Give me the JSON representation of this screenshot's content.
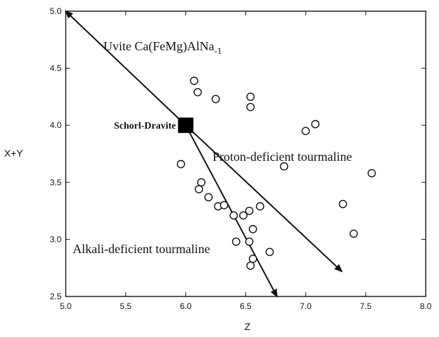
{
  "chart_data": {
    "type": "scatter",
    "title": "",
    "xlabel": "Z",
    "ylabel": "X+Y",
    "xlim": [
      5.0,
      8.0
    ],
    "ylim": [
      2.5,
      5.0
    ],
    "xticks": [
      "5.0",
      "5.5",
      "6.0",
      "6.5",
      "7.0",
      "7.5",
      "8.0"
    ],
    "yticks": [
      "2.5",
      "3.0",
      "3.5",
      "4.0",
      "4.5",
      "5.0"
    ],
    "grid": false,
    "points": [
      {
        "x": 6.07,
        "y": 4.39
      },
      {
        "x": 6.1,
        "y": 4.29
      },
      {
        "x": 6.25,
        "y": 4.23
      },
      {
        "x": 6.54,
        "y": 4.25
      },
      {
        "x": 6.54,
        "y": 4.16
      },
      {
        "x": 7.0,
        "y": 3.95
      },
      {
        "x": 7.08,
        "y": 4.01
      },
      {
        "x": 5.96,
        "y": 3.66
      },
      {
        "x": 6.82,
        "y": 3.64
      },
      {
        "x": 7.55,
        "y": 3.58
      },
      {
        "x": 6.13,
        "y": 3.5
      },
      {
        "x": 6.11,
        "y": 3.44
      },
      {
        "x": 6.19,
        "y": 3.37
      },
      {
        "x": 6.27,
        "y": 3.29
      },
      {
        "x": 6.32,
        "y": 3.3
      },
      {
        "x": 6.4,
        "y": 3.21
      },
      {
        "x": 6.48,
        "y": 3.21
      },
      {
        "x": 6.53,
        "y": 3.25
      },
      {
        "x": 6.62,
        "y": 3.29
      },
      {
        "x": 7.31,
        "y": 3.31
      },
      {
        "x": 6.56,
        "y": 3.09
      },
      {
        "x": 7.4,
        "y": 3.05
      },
      {
        "x": 6.42,
        "y": 2.98
      },
      {
        "x": 6.53,
        "y": 2.98
      },
      {
        "x": 6.7,
        "y": 2.89
      },
      {
        "x": 6.56,
        "y": 2.83
      },
      {
        "x": 6.54,
        "y": 2.77
      }
    ],
    "reference_point": {
      "label": "Schorl-Dravite",
      "x": 6.0,
      "y": 4.0
    },
    "vectors": [
      {
        "label": "Uvite Ca(FeMg)AlNa",
        "label_sub": "-1",
        "from": [
          6.0,
          4.0
        ],
        "to": [
          5.0,
          5.0
        ]
      },
      {
        "label": "Proton-deficient tourmaline",
        "from": [
          6.0,
          4.0
        ],
        "to": [
          7.3,
          2.72
        ]
      },
      {
        "label": "Alkali-deficient tourmaline",
        "from": [
          6.0,
          4.0
        ],
        "to": [
          6.76,
          2.5
        ]
      }
    ]
  }
}
